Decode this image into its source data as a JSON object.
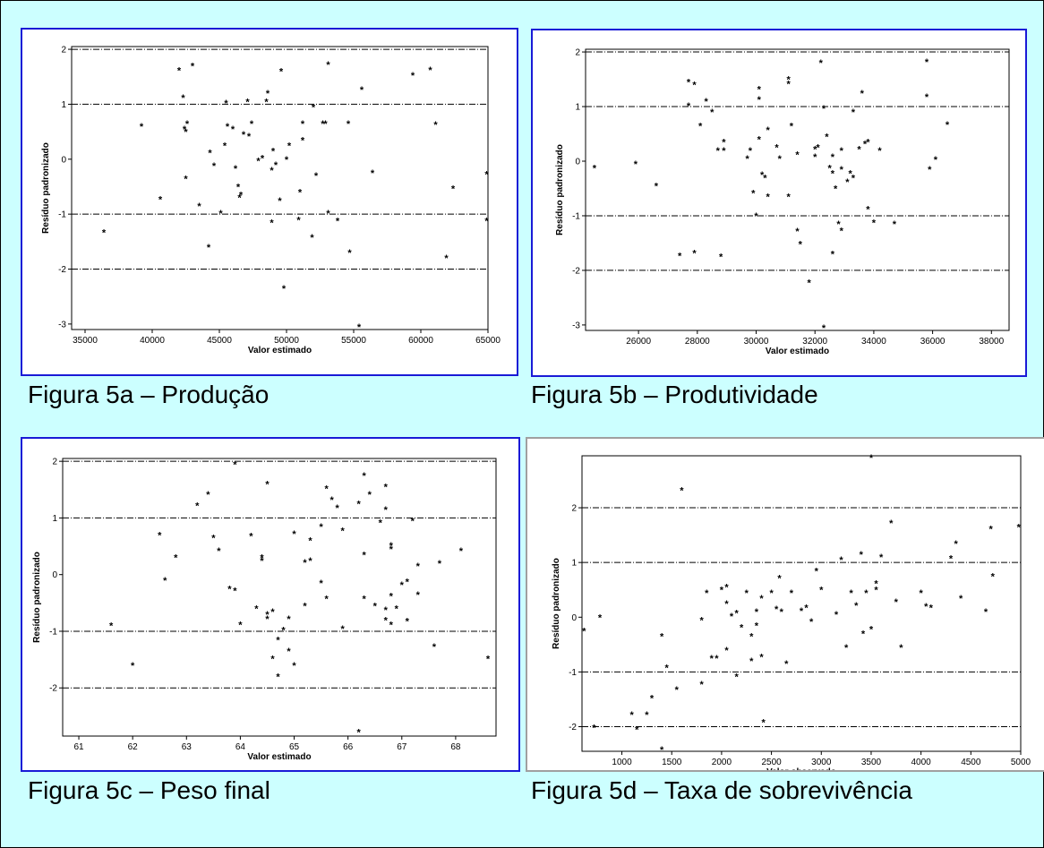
{
  "figures": [
    {
      "caption": "Figura 5a – Produção",
      "chart_data": {
        "type": "scatter",
        "xlabel": "Valor estimado",
        "ylabel": "Resíduo padronizado",
        "xlim": [
          34000,
          65000
        ],
        "ylim": [
          -3.1,
          2.05
        ],
        "xticks": [
          35000,
          40000,
          45000,
          50000,
          55000,
          60000,
          65000
        ],
        "yticks": [
          -3,
          -2,
          -1,
          0,
          1,
          2
        ],
        "reference_lines": [
          -2,
          -1,
          1,
          2
        ],
        "points": [
          [
            36400,
            -1.33
          ],
          [
            39200,
            0.6
          ],
          [
            40600,
            -0.73
          ],
          [
            42000,
            1.62
          ],
          [
            42300,
            1.12
          ],
          [
            42400,
            0.55
          ],
          [
            42500,
            0.5
          ],
          [
            42600,
            0.65
          ],
          [
            42500,
            -0.35
          ],
          [
            43000,
            1.7
          ],
          [
            43500,
            -0.85
          ],
          [
            44200,
            -1.6
          ],
          [
            44300,
            0.12
          ],
          [
            44600,
            -0.12
          ],
          [
            45100,
            -0.98
          ],
          [
            45400,
            0.25
          ],
          [
            45500,
            1.02
          ],
          [
            45600,
            0.6
          ],
          [
            46000,
            0.55
          ],
          [
            46200,
            -0.17
          ],
          [
            46400,
            -0.5
          ],
          [
            46600,
            -0.65
          ],
          [
            46500,
            -0.7
          ],
          [
            46800,
            0.45
          ],
          [
            47100,
            1.05
          ],
          [
            47200,
            0.42
          ],
          [
            47400,
            0.65
          ],
          [
            47900,
            -0.03
          ],
          [
            48200,
            0.02
          ],
          [
            48500,
            1.05
          ],
          [
            48600,
            1.2
          ],
          [
            48900,
            -1.15
          ],
          [
            48900,
            -0.2
          ],
          [
            49000,
            0.15
          ],
          [
            49200,
            -0.1
          ],
          [
            49500,
            -0.75
          ],
          [
            49600,
            1.6
          ],
          [
            49800,
            -2.35
          ],
          [
            50000,
            0.0
          ],
          [
            50200,
            0.25
          ],
          [
            50900,
            -1.1
          ],
          [
            51000,
            -0.6
          ],
          [
            51200,
            0.35
          ],
          [
            51200,
            0.65
          ],
          [
            51900,
            -1.42
          ],
          [
            52000,
            0.95
          ],
          [
            52200,
            -0.3
          ],
          [
            52700,
            0.65
          ],
          [
            52900,
            0.65
          ],
          [
            53100,
            1.72
          ],
          [
            53100,
            -0.98
          ],
          [
            53800,
            -1.12
          ],
          [
            54600,
            0.65
          ],
          [
            54700,
            -1.7
          ],
          [
            55400,
            -3.05
          ],
          [
            55600,
            1.27
          ],
          [
            56400,
            -0.25
          ],
          [
            59400,
            1.53
          ],
          [
            60700,
            1.63
          ],
          [
            61100,
            0.63
          ],
          [
            61900,
            -1.8
          ],
          [
            62400,
            -0.53
          ],
          [
            64900,
            -0.27
          ],
          [
            64900,
            -1.12
          ]
        ]
      }
    },
    {
      "caption": "Figura 5b – Produtividade",
      "chart_data": {
        "type": "scatter",
        "xlabel": "Valor estimado",
        "ylabel": "Resíduo padronizado",
        "xlim": [
          24200,
          38600
        ],
        "ylim": [
          -3.1,
          2.05
        ],
        "xticks": [
          26000,
          28000,
          30000,
          32000,
          34000,
          36000,
          38000
        ],
        "yticks": [
          -3,
          -2,
          -1,
          0,
          1,
          2
        ],
        "reference_lines": [
          -2,
          -1,
          1,
          2
        ],
        "points": [
          [
            24500,
            -0.12
          ],
          [
            25900,
            -0.05
          ],
          [
            26600,
            -0.45
          ],
          [
            27400,
            -1.73
          ],
          [
            27700,
            1.45
          ],
          [
            27700,
            1.02
          ],
          [
            27900,
            1.4
          ],
          [
            27900,
            -1.68
          ],
          [
            28100,
            0.65
          ],
          [
            28300,
            1.1
          ],
          [
            28500,
            0.9
          ],
          [
            28700,
            0.2
          ],
          [
            28900,
            0.35
          ],
          [
            28900,
            0.2
          ],
          [
            28800,
            -1.75
          ],
          [
            29700,
            0.05
          ],
          [
            29800,
            0.2
          ],
          [
            29900,
            -0.58
          ],
          [
            30000,
            -1.0
          ],
          [
            30100,
            1.13
          ],
          [
            30100,
            1.32
          ],
          [
            30100,
            0.4
          ],
          [
            30200,
            -0.25
          ],
          [
            30300,
            -0.3
          ],
          [
            30400,
            -0.65
          ],
          [
            30400,
            0.57
          ],
          [
            30700,
            0.25
          ],
          [
            30800,
            0.05
          ],
          [
            31100,
            1.5
          ],
          [
            31100,
            1.42
          ],
          [
            31100,
            -0.65
          ],
          [
            31200,
            0.65
          ],
          [
            31400,
            0.12
          ],
          [
            31400,
            -1.28
          ],
          [
            31500,
            -1.52
          ],
          [
            31800,
            -2.22
          ],
          [
            32000,
            0.08
          ],
          [
            32000,
            0.22
          ],
          [
            32100,
            0.25
          ],
          [
            32200,
            1.8
          ],
          [
            32300,
            0.97
          ],
          [
            32400,
            0.45
          ],
          [
            32300,
            -3.05
          ],
          [
            32500,
            -0.12
          ],
          [
            32600,
            -0.22
          ],
          [
            32600,
            0.08
          ],
          [
            32600,
            -1.7
          ],
          [
            32700,
            -0.5
          ],
          [
            32800,
            -1.15
          ],
          [
            32900,
            -1.27
          ],
          [
            32900,
            -0.15
          ],
          [
            32900,
            0.2
          ],
          [
            33100,
            -0.38
          ],
          [
            33200,
            -0.22
          ],
          [
            33300,
            0.9
          ],
          [
            33300,
            -0.3
          ],
          [
            33500,
            0.22
          ],
          [
            33600,
            1.25
          ],
          [
            33700,
            0.32
          ],
          [
            33800,
            0.35
          ],
          [
            33800,
            -0.88
          ],
          [
            34000,
            -1.12
          ],
          [
            34200,
            0.2
          ],
          [
            34700,
            -1.15
          ],
          [
            35800,
            1.82
          ],
          [
            35800,
            1.18
          ],
          [
            35900,
            -0.15
          ],
          [
            36100,
            0.03
          ],
          [
            36500,
            0.67
          ]
        ]
      }
    },
    {
      "caption": "Figura 5c – Peso final",
      "chart_data": {
        "type": "scatter",
        "xlabel": "Valor estimado",
        "ylabel": "Resíduo padronizado",
        "xlim": [
          60.7,
          68.75
        ],
        "ylim": [
          -2.85,
          2.05
        ],
        "xticks": [
          61,
          62,
          63,
          64,
          65,
          66,
          67,
          68
        ],
        "yticks": [
          -2,
          -1,
          0,
          1,
          2
        ],
        "reference_lines": [
          -2,
          -1,
          1,
          2
        ],
        "points": [
          [
            61.6,
            -0.9
          ],
          [
            62.0,
            -1.6
          ],
          [
            62.5,
            0.7
          ],
          [
            62.6,
            -0.1
          ],
          [
            62.8,
            0.3
          ],
          [
            63.2,
            1.22
          ],
          [
            63.4,
            1.42
          ],
          [
            63.5,
            0.65
          ],
          [
            63.6,
            0.42
          ],
          [
            63.8,
            -0.25
          ],
          [
            63.9,
            -0.28
          ],
          [
            63.9,
            1.95
          ],
          [
            64.0,
            -0.88
          ],
          [
            64.2,
            0.68
          ],
          [
            64.3,
            -0.6
          ],
          [
            64.4,
            0.3
          ],
          [
            64.4,
            0.25
          ],
          [
            64.5,
            -0.7
          ],
          [
            64.5,
            -0.78
          ],
          [
            64.5,
            1.6
          ],
          [
            64.6,
            -0.65
          ],
          [
            64.6,
            -1.48
          ],
          [
            64.7,
            -1.8
          ],
          [
            64.7,
            -1.15
          ],
          [
            64.8,
            -0.98
          ],
          [
            64.9,
            -1.35
          ],
          [
            64.9,
            -0.78
          ],
          [
            65.0,
            -1.6
          ],
          [
            65.0,
            0.72
          ],
          [
            65.2,
            0.22
          ],
          [
            65.2,
            -0.55
          ],
          [
            65.3,
            0.25
          ],
          [
            65.3,
            0.6
          ],
          [
            65.5,
            0.85
          ],
          [
            65.5,
            -0.15
          ],
          [
            65.6,
            -0.42
          ],
          [
            65.6,
            1.52
          ],
          [
            65.7,
            1.32
          ],
          [
            65.8,
            1.18
          ],
          [
            65.9,
            0.78
          ],
          [
            65.9,
            -0.95
          ],
          [
            66.2,
            1.25
          ],
          [
            66.3,
            1.75
          ],
          [
            66.3,
            0.35
          ],
          [
            66.3,
            -0.42
          ],
          [
            66.4,
            1.42
          ],
          [
            66.5,
            -0.55
          ],
          [
            66.6,
            0.92
          ],
          [
            66.7,
            1.55
          ],
          [
            66.7,
            -0.62
          ],
          [
            66.7,
            1.15
          ],
          [
            66.7,
            -0.8
          ],
          [
            66.8,
            0.52
          ],
          [
            66.8,
            0.45
          ],
          [
            66.8,
            -0.88
          ],
          [
            66.8,
            -0.38
          ],
          [
            66.9,
            -0.6
          ],
          [
            66.2,
            -2.78
          ],
          [
            67.0,
            -0.18
          ],
          [
            67.1,
            -0.82
          ],
          [
            67.1,
            -0.12
          ],
          [
            67.2,
            0.95
          ],
          [
            67.3,
            0.15
          ],
          [
            67.3,
            -0.35
          ],
          [
            67.6,
            -1.27
          ],
          [
            67.7,
            0.2
          ],
          [
            68.1,
            0.42
          ],
          [
            68.6,
            -1.48
          ]
        ]
      }
    },
    {
      "caption": "Figura 5d – Taxa de sobrevivência",
      "chart_data": {
        "type": "scatter",
        "xlabel": "Valor observado",
        "ylabel": "Resíduo padronizado",
        "xlim": [
          600,
          5000
        ],
        "ylim": [
          -2.45,
          2.95
        ],
        "xticks": [
          1000,
          1500,
          2000,
          2500,
          3000,
          3500,
          4000,
          4500,
          5000
        ],
        "yticks": [
          -2,
          -1,
          0,
          1,
          2
        ],
        "reference_lines": [
          -2,
          -1,
          1,
          2
        ],
        "points": [
          [
            620,
            -0.25
          ],
          [
            720,
            -2.02
          ],
          [
            780,
            0.0
          ],
          [
            1100,
            -1.78
          ],
          [
            1150,
            -2.05
          ],
          [
            1250,
            -1.78
          ],
          [
            1300,
            -1.48
          ],
          [
            1400,
            -0.35
          ],
          [
            1400,
            -2.42
          ],
          [
            1450,
            -0.92
          ],
          [
            1550,
            -1.32
          ],
          [
            1600,
            2.32
          ],
          [
            1800,
            -1.22
          ],
          [
            1800,
            -0.05
          ],
          [
            1850,
            0.45
          ],
          [
            1900,
            -0.75
          ],
          [
            1950,
            -0.75
          ],
          [
            2000,
            0.5
          ],
          [
            2050,
            0.25
          ],
          [
            2050,
            0.55
          ],
          [
            2050,
            -0.6
          ],
          [
            2100,
            0.02
          ],
          [
            2150,
            0.08
          ],
          [
            2150,
            -1.08
          ],
          [
            2200,
            -0.18
          ],
          [
            2250,
            0.45
          ],
          [
            2300,
            -0.35
          ],
          [
            2300,
            -0.8
          ],
          [
            2350,
            0.1
          ],
          [
            2350,
            -0.15
          ],
          [
            2400,
            0.35
          ],
          [
            2400,
            -0.72
          ],
          [
            2420,
            -1.92
          ],
          [
            2500,
            0.45
          ],
          [
            2550,
            0.15
          ],
          [
            2580,
            0.72
          ],
          [
            2600,
            0.1
          ],
          [
            2650,
            -0.85
          ],
          [
            2700,
            0.45
          ],
          [
            2800,
            0.12
          ],
          [
            2850,
            0.18
          ],
          [
            2900,
            -0.08
          ],
          [
            2950,
            0.85
          ],
          [
            3000,
            0.5
          ],
          [
            3150,
            0.05
          ],
          [
            3200,
            1.05
          ],
          [
            3250,
            -0.55
          ],
          [
            3300,
            0.45
          ],
          [
            3350,
            0.22
          ],
          [
            3400,
            1.15
          ],
          [
            3420,
            -0.3
          ],
          [
            3450,
            0.45
          ],
          [
            3500,
            -0.22
          ],
          [
            3500,
            2.92
          ],
          [
            3550,
            0.62
          ],
          [
            3550,
            0.5
          ],
          [
            3600,
            1.1
          ],
          [
            3700,
            1.72
          ],
          [
            3750,
            0.28
          ],
          [
            3800,
            -0.55
          ],
          [
            4000,
            0.45
          ],
          [
            4050,
            0.2
          ],
          [
            4100,
            0.18
          ],
          [
            4300,
            1.08
          ],
          [
            4350,
            1.35
          ],
          [
            4400,
            0.35
          ],
          [
            4650,
            0.1
          ],
          [
            4700,
            1.62
          ],
          [
            4720,
            0.75
          ],
          [
            4980,
            1.65
          ]
        ]
      }
    }
  ]
}
